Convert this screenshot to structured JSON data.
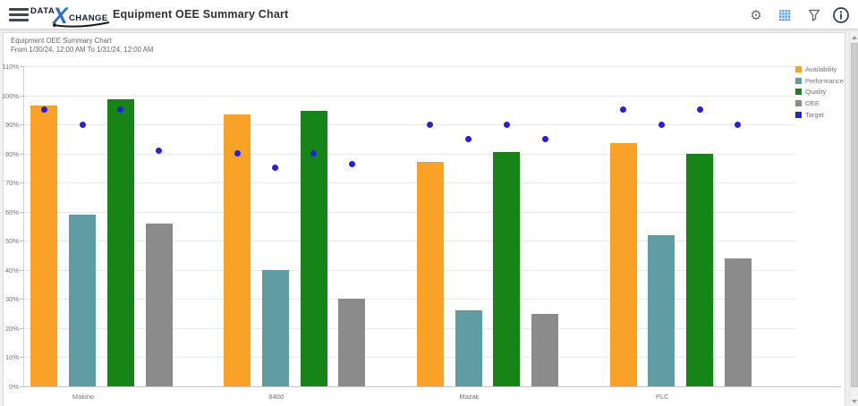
{
  "header": {
    "title": "Equipment OEE Summary Chart",
    "logo": {
      "part1": "DATA",
      "x": "X",
      "part2": "CHANGE"
    },
    "icons": [
      {
        "name": "menu-icon"
      },
      {
        "name": "settings-gear-icon",
        "glyph": "⚙"
      },
      {
        "name": "grid-view-icon"
      },
      {
        "name": "filter-icon"
      },
      {
        "name": "info-icon"
      }
    ]
  },
  "chart": {
    "title": "Equipment OEE Summary Chart",
    "subtitle": "From 1/30/24, 12:00 AM To 1/31/24, 12:00 AM"
  },
  "chart_data": {
    "type": "bar",
    "title": "Equipment OEE Summary Chart",
    "subtitle": "From 1/30/24, 12:00 AM To 1/31/24, 12:00 AM",
    "categories": [
      "Makino",
      "840d",
      "Mazak",
      "PLC"
    ],
    "series": [
      {
        "name": "Availability",
        "type": "bar",
        "color": "#F9A226",
        "values": [
          96.5,
          93.5,
          77,
          83.5
        ]
      },
      {
        "name": "Performance",
        "type": "bar",
        "color": "#5E9EA3",
        "values": [
          59,
          40,
          26,
          52
        ]
      },
      {
        "name": "Quality",
        "type": "bar",
        "color": "#168416",
        "values": [
          98.5,
          94.5,
          80.5,
          80
        ]
      },
      {
        "name": "OEE",
        "type": "bar",
        "color": "#8B8B8B",
        "values": [
          56,
          30,
          25,
          44
        ]
      },
      {
        "name": "Target",
        "type": "point",
        "color": "#2222DD",
        "values": [
          [
            95,
            90,
            95,
            81
          ],
          [
            80,
            75,
            80,
            76.5
          ],
          [
            90,
            85,
            90,
            85
          ],
          [
            95,
            90,
            95,
            90
          ]
        ]
      }
    ],
    "ylim": [
      0,
      110
    ],
    "ytick_step": 10,
    "ytick_labels": [
      "0%",
      "10%",
      "20%",
      "30%",
      "40%",
      "50%",
      "60%",
      "70%",
      "80%",
      "90%",
      "100%",
      "110%"
    ],
    "grid": true,
    "legend_position": "top-right"
  },
  "colors": {
    "accent_blue": "#57a2f5",
    "target_dot": "#2222DD",
    "logo_navy": "#141d3c",
    "logo_blue": "#2e6bd6",
    "info_navy": "#2c3a63"
  }
}
